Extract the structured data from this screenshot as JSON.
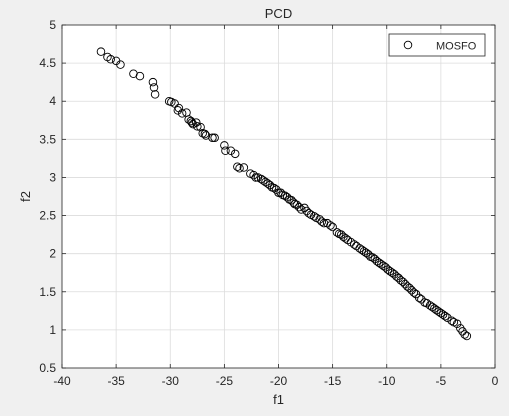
{
  "chart_data": {
    "type": "scatter",
    "title": "PCD",
    "xlabel": "f1",
    "ylabel": "f2",
    "xlim": [
      -40,
      0
    ],
    "ylim": [
      0.5,
      5
    ],
    "xticks": [
      -40,
      -35,
      -30,
      -25,
      -20,
      -15,
      -10,
      -5,
      0
    ],
    "yticks": [
      0.5,
      1,
      1.5,
      2,
      2.5,
      3,
      3.5,
      4,
      4.5,
      5
    ],
    "xtick_labels": [
      "-40",
      "-35",
      "-30",
      "-25",
      "-20",
      "-15",
      "-10",
      "-5",
      "0"
    ],
    "ytick_labels": [
      "0.5",
      "1",
      "1.5",
      "2",
      "2.5",
      "3",
      "3.5",
      "4",
      "4.5",
      "5"
    ],
    "grid": true,
    "legend": {
      "position": "top-right",
      "entries": [
        "MOSFO"
      ]
    },
    "series": [
      {
        "name": "MOSFO",
        "marker": "circle-open",
        "color": "#000000",
        "x": [
          -36.4,
          -35.8,
          -35.5,
          -35.0,
          -34.6,
          -33.4,
          -32.8,
          -31.6,
          -31.5,
          -31.4,
          -30.1,
          -29.9,
          -29.6,
          -29.3,
          -29.2,
          -28.9,
          -28.5,
          -28.3,
          -28.1,
          -28.0,
          -27.9,
          -27.6,
          -27.5,
          -27.2,
          -27.0,
          -26.8,
          -26.7,
          -26.1,
          -25.9,
          -25.0,
          -24.9,
          -24.4,
          -24.0,
          -23.8,
          -23.6,
          -23.2,
          -22.6,
          -22.3,
          -22.1,
          -21.9,
          -21.6,
          -21.4,
          -21.2,
          -21.0,
          -20.8,
          -20.6,
          -20.4,
          -20.2,
          -20.0,
          -19.8,
          -19.6,
          -19.4,
          -19.2,
          -19.0,
          -18.8,
          -18.6,
          -18.5,
          -18.3,
          -18.1,
          -17.9,
          -17.6,
          -17.4,
          -17.2,
          -17.0,
          -16.7,
          -16.5,
          -16.2,
          -16.0,
          -15.8,
          -15.5,
          -15.2,
          -15.0,
          -14.6,
          -14.4,
          -14.2,
          -14.0,
          -13.8,
          -13.6,
          -13.3,
          -13.0,
          -12.8,
          -12.5,
          -12.3,
          -12.1,
          -11.9,
          -11.7,
          -11.5,
          -11.3,
          -11.1,
          -10.9,
          -10.7,
          -10.5,
          -10.3,
          -10.1,
          -9.9,
          -9.7,
          -9.5,
          -9.3,
          -9.1,
          -8.9,
          -8.7,
          -8.5,
          -8.3,
          -8.1,
          -7.9,
          -7.7,
          -7.5,
          -7.3,
          -7.0,
          -6.8,
          -6.5,
          -6.3,
          -6.0,
          -5.8,
          -5.6,
          -5.4,
          -5.2,
          -5.0,
          -4.8,
          -4.6,
          -4.4,
          -4.0,
          -3.8,
          -3.5,
          -3.2,
          -3.0,
          -2.8,
          -2.6
        ],
        "y": [
          4.65,
          4.58,
          4.55,
          4.53,
          4.48,
          4.36,
          4.33,
          4.25,
          4.18,
          4.09,
          4.0,
          3.99,
          3.97,
          3.88,
          3.91,
          3.84,
          3.85,
          3.76,
          3.74,
          3.72,
          3.7,
          3.72,
          3.67,
          3.66,
          3.58,
          3.57,
          3.55,
          3.52,
          3.52,
          3.42,
          3.35,
          3.35,
          3.31,
          3.14,
          3.12,
          3.13,
          3.05,
          3.03,
          3.0,
          3.0,
          2.98,
          2.96,
          2.94,
          2.92,
          2.9,
          2.87,
          2.86,
          2.84,
          2.8,
          2.8,
          2.77,
          2.76,
          2.74,
          2.71,
          2.7,
          2.67,
          2.65,
          2.64,
          2.61,
          2.58,
          2.6,
          2.56,
          2.53,
          2.51,
          2.49,
          2.47,
          2.45,
          2.42,
          2.4,
          2.4,
          2.37,
          2.35,
          2.28,
          2.26,
          2.25,
          2.22,
          2.2,
          2.18,
          2.15,
          2.12,
          2.1,
          2.07,
          2.05,
          2.03,
          2.01,
          1.99,
          1.96,
          1.95,
          1.93,
          1.9,
          1.88,
          1.86,
          1.84,
          1.82,
          1.79,
          1.77,
          1.75,
          1.73,
          1.7,
          1.68,
          1.65,
          1.63,
          1.6,
          1.57,
          1.55,
          1.52,
          1.49,
          1.47,
          1.42,
          1.4,
          1.36,
          1.35,
          1.32,
          1.3,
          1.28,
          1.26,
          1.24,
          1.22,
          1.2,
          1.18,
          1.16,
          1.12,
          1.1,
          1.08,
          1.02,
          0.98,
          0.94,
          0.92
        ]
      }
    ]
  }
}
